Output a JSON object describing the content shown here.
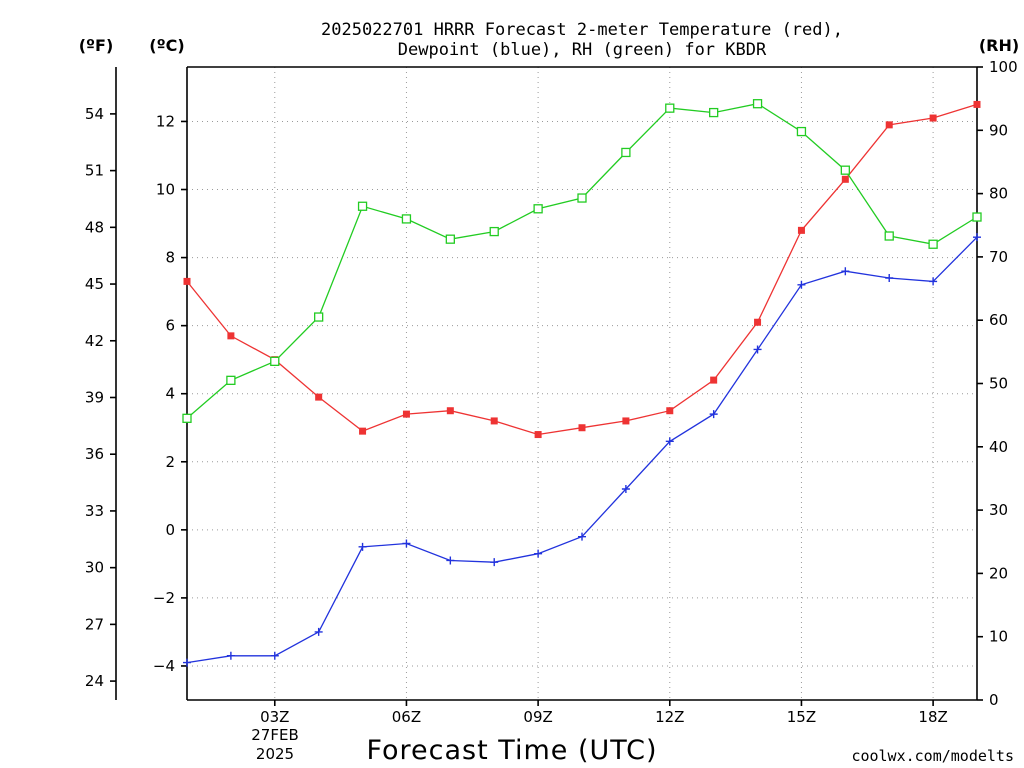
{
  "chart_data": {
    "type": "line",
    "title_line1": "2025022701 HRRR Forecast 2-meter Temperature (red),",
    "title_line2": "Dewpoint (blue), RH (green) for KBDR",
    "xlabel": "Forecast Time (UTC)",
    "x_tick_labels": [
      "03Z",
      "06Z",
      "09Z",
      "12Z",
      "15Z",
      "18Z"
    ],
    "x_tick_hours": [
      3,
      6,
      9,
      12,
      15,
      18
    ],
    "x_date_line1": "27FEB",
    "x_date_line2": "2025",
    "xlim": [
      1,
      19
    ],
    "x": [
      1,
      2,
      3,
      4,
      5,
      6,
      7,
      8,
      9,
      10,
      11,
      12,
      13,
      14,
      15,
      16,
      17,
      18,
      19
    ],
    "left_unit_f": "(ºF)",
    "left_unit_c": "(ºC)",
    "right_unit": "(RH)",
    "ylim_c": [
      -5,
      13.6
    ],
    "y_ticks_c": [
      -4,
      -2,
      0,
      2,
      4,
      6,
      8,
      10,
      12
    ],
    "y_ticks_f": [
      24,
      27,
      30,
      33,
      36,
      39,
      42,
      45,
      48,
      51,
      54
    ],
    "ylim_rh": [
      0,
      100
    ],
    "y_ticks_rh": [
      0,
      10,
      20,
      30,
      40,
      50,
      60,
      70,
      80,
      90,
      100
    ],
    "series": [
      {
        "name": "Temperature",
        "axis": "c",
        "color": "#ee3333",
        "marker": "filled-square",
        "values": [
          7.3,
          5.7,
          5.0,
          3.9,
          2.9,
          3.4,
          3.5,
          3.2,
          2.8,
          3.0,
          3.2,
          3.5,
          4.4,
          6.1,
          8.8,
          10.3,
          11.9,
          12.1,
          12.5
        ]
      },
      {
        "name": "Dewpoint",
        "axis": "c",
        "color": "#2233dd",
        "marker": "plus",
        "values": [
          -3.9,
          -3.7,
          -3.7,
          -3.0,
          -0.5,
          -0.4,
          -0.9,
          -0.95,
          -0.7,
          -0.2,
          1.2,
          2.6,
          3.4,
          5.3,
          7.2,
          7.6,
          7.4,
          7.3,
          8.6
        ]
      },
      {
        "name": "RH",
        "axis": "rh",
        "color": "#22cc22",
        "marker": "open-square",
        "values": [
          44.5,
          50.5,
          53.5,
          60.5,
          78.0,
          76.0,
          72.8,
          74.0,
          77.6,
          79.3,
          86.5,
          93.5,
          92.8,
          94.2,
          89.8,
          83.7,
          73.3,
          72.0,
          76.3
        ]
      }
    ]
  },
  "footer": {
    "credit": "coolwx.com/modelts",
    "credit_color": "#dd2222"
  }
}
